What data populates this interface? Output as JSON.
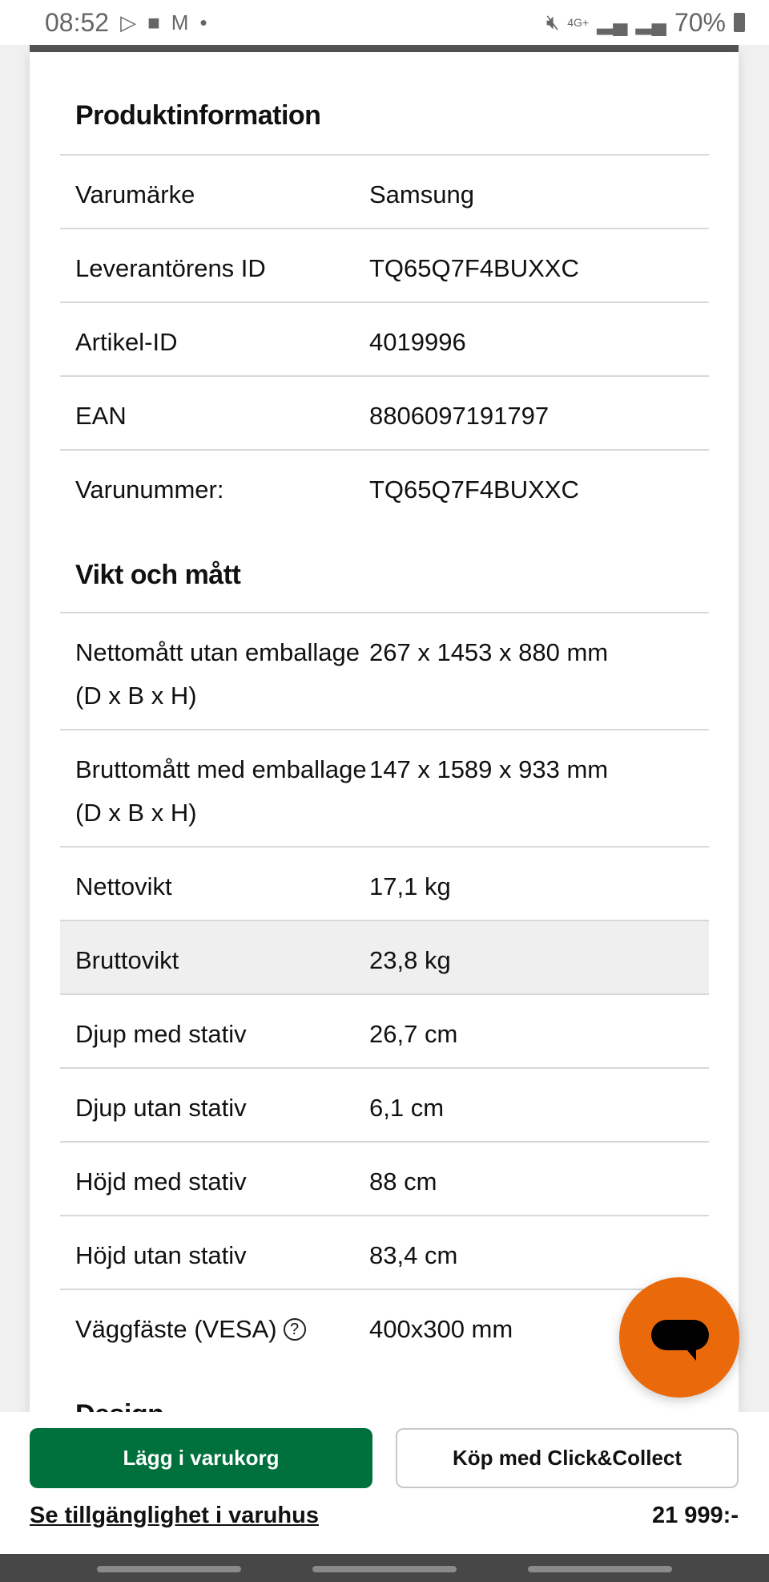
{
  "status_bar": {
    "time": "08:52",
    "battery": "70%",
    "network": "4G+",
    "icons": [
      "play-store-icon",
      "folder-icon",
      "gmail-icon",
      "dot-icon",
      "mute-icon",
      "signal-icon",
      "roaming-signal-icon",
      "battery-icon"
    ]
  },
  "sections": [
    {
      "title": "Produktinformation",
      "rows": [
        {
          "label": "Varumärke",
          "value": "Samsung"
        },
        {
          "label": "Leverantörens ID",
          "value": "TQ65Q7F4BUXXC"
        },
        {
          "label": "Artikel-ID",
          "value": "4019996"
        },
        {
          "label": "EAN",
          "value": "8806097191797"
        },
        {
          "label": "Varunummer:",
          "value": "TQ65Q7F4BUXXC"
        }
      ]
    },
    {
      "title": "Vikt och mått",
      "rows": [
        {
          "label": "Nettomått utan emballage (D x B x H)",
          "value": "267 x 1453 x 880 mm"
        },
        {
          "label": "Bruttomått med emballage (D x B x H)",
          "value": "147 x 1589 x 933 mm"
        },
        {
          "label": "Nettovikt",
          "value": "17,1 kg"
        },
        {
          "label": "Bruttovikt",
          "value": "23,8 kg"
        },
        {
          "label": "Djup med stativ",
          "value": "26,7 cm"
        },
        {
          "label": "Djup utan stativ",
          "value": "6,1 cm"
        },
        {
          "label": "Höjd med stativ",
          "value": "88 cm"
        },
        {
          "label": "Höjd utan stativ",
          "value": "83,4 cm"
        },
        {
          "label": "Väggfäste (VESA)",
          "value": "400x300 mm",
          "help": "?"
        }
      ]
    },
    {
      "title": "Design"
    }
  ],
  "bottom_bar": {
    "add_to_cart": "Lägg i varukorg",
    "click_collect": "Köp med Click&Collect",
    "availability_link": "Se tillgänglighet i varuhus",
    "price": "21 999:-"
  },
  "colors": {
    "primary_green": "#00703c",
    "chat_orange": "#ea690b"
  }
}
